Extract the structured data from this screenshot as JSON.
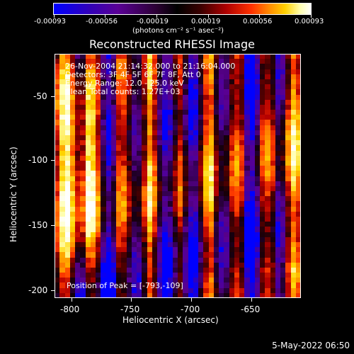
{
  "colorbar": {
    "tick_labels": [
      "-0.00093",
      "-0.00056",
      "-0.00019",
      "0.00019",
      "0.00056",
      "0.00093"
    ],
    "unit_label": "(photons cm⁻² s⁻¹ asec⁻²)"
  },
  "chart": {
    "title": "Reconstructed RHESSI Image",
    "x_label": "Heliocentric X (arcsec)",
    "y_label": "Heliocentric Y (arcsec)",
    "x_ticks": [
      "-800",
      "-750",
      "-700",
      "-650"
    ],
    "y_ticks": [
      "-50",
      "-100",
      "-150",
      "-200"
    ]
  },
  "overlay": {
    "line1": "26-Nov-2004 21:14:32.000 to 21:16:04.000",
    "line2": "Detectors: 3F 4F 5F 6F 7F 8F, Att 0",
    "line3": "Energy Range: 12.0 - 25.0 keV",
    "line4": "Clean     Total counts: 1.27E+03",
    "peak": "Position of Peak = [-793,-109]"
  },
  "footer": {
    "timestamp": "5-May-2022 06:50"
  },
  "chart_data": {
    "type": "heatmap",
    "title": "Reconstructed RHESSI Image",
    "xlabel": "Heliocentric X (arcsec)",
    "ylabel": "Heliocentric Y (arcsec)",
    "xlim": [
      -810,
      -620
    ],
    "ylim": [
      -210,
      -20
    ],
    "xticks": [
      -800,
      -750,
      -700,
      -650
    ],
    "yticks": [
      -50,
      -100,
      -150,
      -200
    ],
    "colorbar_range": [
      -0.00093,
      0.00093
    ],
    "colorbar_ticks": [
      -0.00093,
      -0.00056,
      -0.00019,
      0.00019,
      0.00056,
      0.00093
    ],
    "colorbar_units": "(photons cm⁻² s⁻¹ asec⁻²)",
    "annotations": [
      "26-Nov-2004 21:14:32.000 to 21:16:04.000",
      "Detectors: 3F 4F 5F 6F 7F 8F, Att 0",
      "Energy Range: 12.0 - 25.0 keV",
      "Clean     Total counts: 1.27E+03",
      "Position of Peak = [-793,-109]"
    ],
    "peak_position": [
      -793,
      -109
    ]
  }
}
